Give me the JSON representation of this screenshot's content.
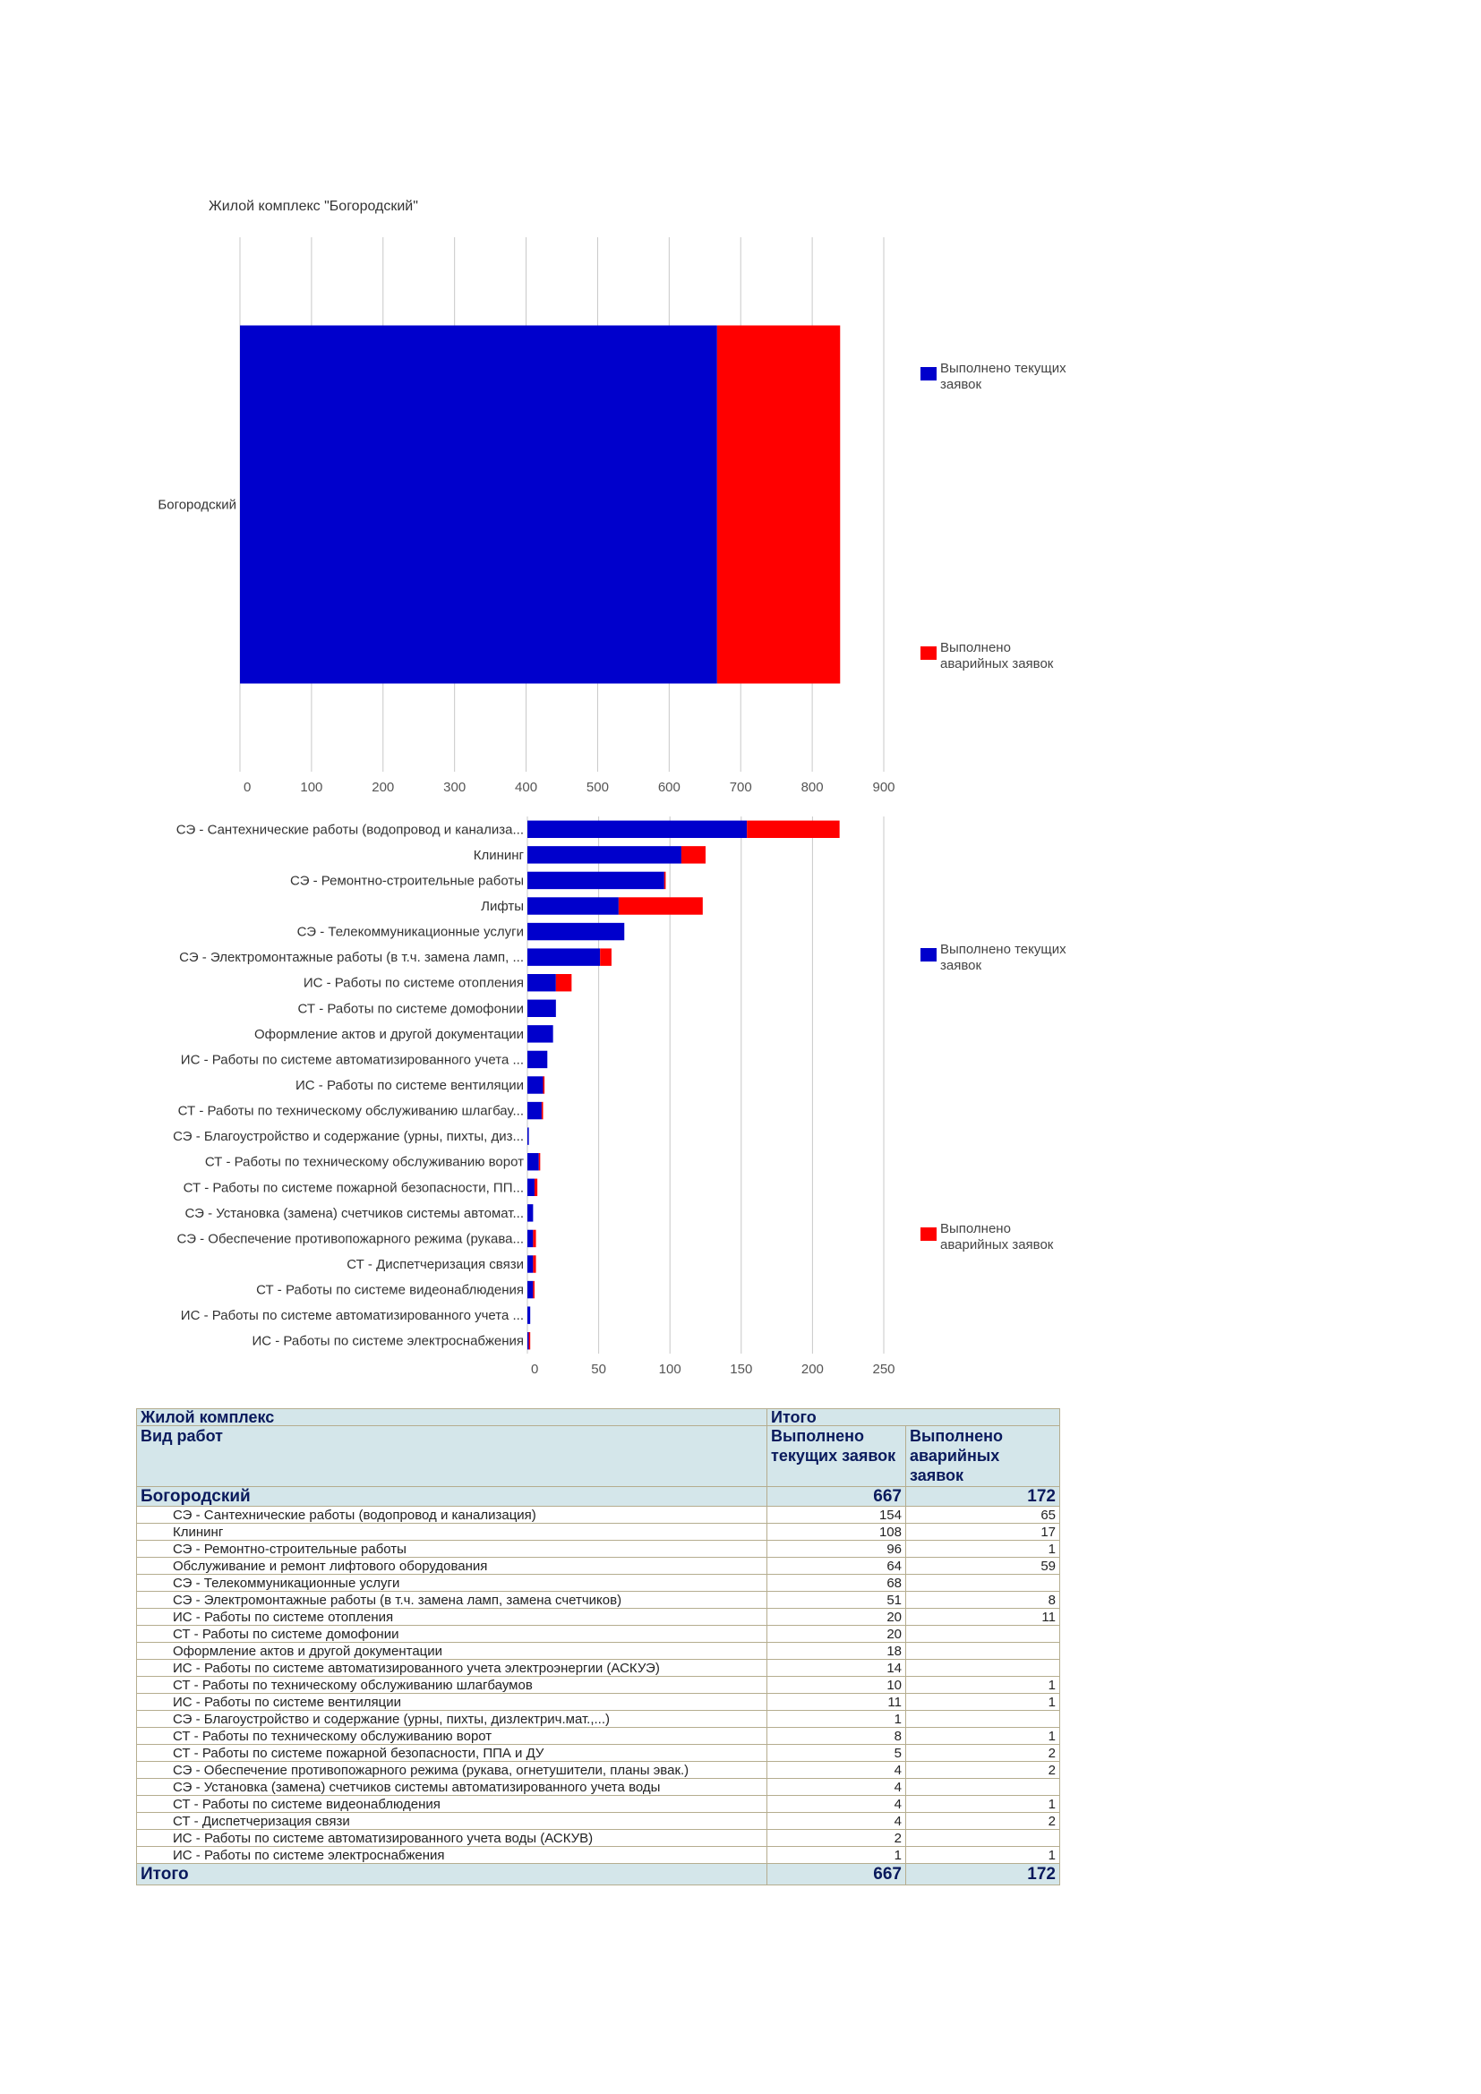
{
  "page_title": "Жилой комплекс \"Богородский\"",
  "colors": {
    "current": "#0000cc",
    "emergency": "#ff0000",
    "grid": "#c8c8c8"
  },
  "legend": {
    "current": "Выполнено текущих заявок",
    "emergency": "Выполнено аварийных заявок"
  },
  "chart_data": [
    {
      "type": "bar",
      "orientation": "horizontal",
      "stacked": true,
      "categories": [
        "Богородский"
      ],
      "series": [
        {
          "name": "Выполнено текущих заявок",
          "values": [
            667
          ]
        },
        {
          "name": "Выполнено аварийных заявок",
          "values": [
            172
          ]
        }
      ],
      "xlim": [
        0,
        900
      ],
      "xticks": [
        "0",
        "100",
        "200",
        "300",
        "400",
        "500",
        "600",
        "700",
        "800",
        "900"
      ],
      "grid": true,
      "legend_position": "right"
    },
    {
      "type": "bar",
      "orientation": "horizontal",
      "stacked": true,
      "categories": [
        "СЭ - Сантехнические работы (водопровод и канализа...",
        "Клининг",
        "СЭ - Ремонтно-строительные работы",
        "Лифты",
        "СЭ - Телекоммуникационные услуги",
        "СЭ - Электромонтажные работы (в т.ч. замена ламп, ...",
        "ИС - Работы по системе отопления",
        "СТ - Работы по системе домофонии",
        "Оформление актов и другой документации",
        "ИС - Работы по системе автоматизированного учета ...",
        "ИС - Работы по системе вентиляции",
        "СТ - Работы по техническому обслуживанию шлагбау...",
        "СЭ - Благоустройство и содержание (урны, пихты, диз...",
        "СТ - Работы по техническому обслуживанию ворот",
        "СТ - Работы по системе пожарной безопасности, ПП...",
        "СЭ - Установка (замена) счетчиков системы автомат...",
        "СЭ - Обеспечение противопожарного режима (рукава...",
        "СТ - Диспетчеризация связи",
        "СТ - Работы по системе видеонаблюдения",
        "ИС - Работы по системе автоматизированного учета ...",
        "ИС - Работы по системе электроснабжения"
      ],
      "series": [
        {
          "name": "Выполнено текущих заявок",
          "values": [
            154,
            108,
            96,
            64,
            68,
            51,
            20,
            20,
            18,
            14,
            11,
            10,
            1,
            8,
            5,
            4,
            4,
            4,
            4,
            2,
            1
          ]
        },
        {
          "name": "Выполнено аварийных заявок",
          "values": [
            65,
            17,
            1,
            59,
            0,
            8,
            11,
            0,
            0,
            0,
            1,
            1,
            0,
            1,
            2,
            0,
            2,
            2,
            1,
            0,
            1
          ]
        }
      ],
      "xlim": [
        0,
        250
      ],
      "xticks": [
        "0",
        "50",
        "100",
        "150",
        "200",
        "250"
      ],
      "grid": true,
      "legend_position": "right"
    }
  ],
  "table": {
    "header_complex": "Жилой комплекс",
    "header_total": "Итого",
    "header_work": "Вид работ",
    "col_current": "Выполнено текущих заявок",
    "col_emergency": "Выполнено аварийных заявок",
    "group": {
      "name": "Богородский",
      "current": "667",
      "emergency": "172"
    },
    "rows": [
      {
        "name": "СЭ - Сантехнические работы (водопровод и канализация)",
        "current": "154",
        "emergency": "65",
        "indent": true
      },
      {
        "name": "Клининг",
        "current": "108",
        "emergency": "17",
        "indent": true
      },
      {
        "name": "СЭ - Ремонтно-строительные работы",
        "current": "96",
        "emergency": "1",
        "indent": true
      },
      {
        "name": "Обслуживание и ремонт лифтового оборудования",
        "current": "64",
        "emergency": "59",
        "indent": true
      },
      {
        "name": "СЭ - Телекоммуникационные услуги",
        "current": "68",
        "emergency": "",
        "indent": true
      },
      {
        "name": "СЭ - Электромонтажные работы (в т.ч. замена ламп, замена счетчиков)",
        "current": "51",
        "emergency": "8",
        "indent": true
      },
      {
        "name": "ИС - Работы по системе отопления",
        "current": "20",
        "emergency": "11",
        "indent": true
      },
      {
        "name": "СТ - Работы по системе домофонии",
        "current": "20",
        "emergency": "",
        "indent": true
      },
      {
        "name": "Оформление актов и другой документации",
        "current": "18",
        "emergency": "",
        "indent": true
      },
      {
        "name": "ИС - Работы по системе автоматизированного учета электроэнергии (АСКУЭ)",
        "current": "14",
        "emergency": "",
        "indent": true
      },
      {
        "name": "СТ - Работы по техническому обслуживанию шлагбаумов",
        "current": "10",
        "emergency": "1",
        "indent": true
      },
      {
        "name": "ИС - Работы по системе вентиляции",
        "current": "11",
        "emergency": "1",
        "indent": true
      },
      {
        "name": "СЭ - Благоустройство и содержание (урны, пихты, дизлектрич.мат.,...)",
        "current": "1",
        "emergency": "",
        "indent": true
      },
      {
        "name": "СТ - Работы по техническому обслуживанию ворот",
        "current": "8",
        "emergency": "1",
        "indent": true
      },
      {
        "name": "СТ - Работы по системе пожарной безопасности, ППА и ДУ",
        "current": "5",
        "emergency": "2",
        "indent": true
      },
      {
        "name": "СЭ - Обеспечение противопожарного режима (рукава, огнетушители, планы эвак.)",
        "current": "4",
        "emergency": "2",
        "indent": true
      },
      {
        "name": "СЭ - Установка (замена) счетчиков системы автоматизированного учета воды",
        "current": "4",
        "emergency": "",
        "indent": true
      },
      {
        "name": "СТ - Работы по системе видеонаблюдения",
        "current": "4",
        "emergency": "1",
        "indent": true
      },
      {
        "name": "СТ - Диспетчеризация связи",
        "current": "4",
        "emergency": "2",
        "indent": true
      },
      {
        "name": "ИС - Работы по системе автоматизированного учета воды (АСКУВ)",
        "current": "2",
        "emergency": "",
        "indent": true
      },
      {
        "name": "ИС - Работы по системе электроснабжения",
        "current": "1",
        "emergency": "1",
        "indent": true
      }
    ],
    "total": {
      "name": "Итого",
      "current": "667",
      "emergency": "172"
    }
  }
}
